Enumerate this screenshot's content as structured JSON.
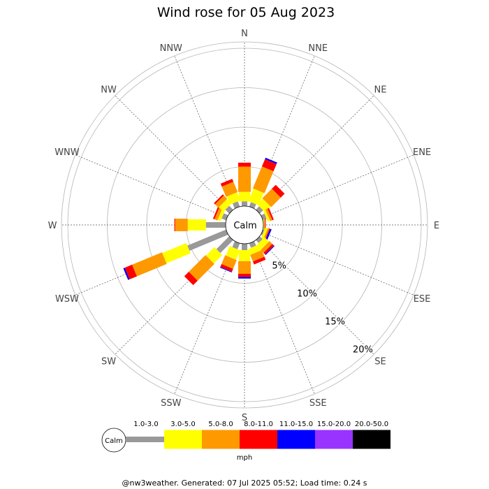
{
  "chart_data": {
    "type": "windrose",
    "title": "Wind rose for 05 Aug 2023",
    "directions": [
      "N",
      "NNE",
      "NE",
      "ENE",
      "E",
      "ESE",
      "SE",
      "SSE",
      "S",
      "SSW",
      "SW",
      "WSW",
      "W",
      "WNW",
      "NW",
      "NNW"
    ],
    "ring_labels": [
      "5%",
      "10%",
      "15%",
      "20%"
    ],
    "ring_values": [
      5,
      10,
      15,
      20
    ],
    "calm_label": "Calm",
    "unit": "mph",
    "speed_bins": [
      {
        "label": "1.0-3.0",
        "color": "#999999"
      },
      {
        "label": "3.0-5.0",
        "color": "#ffff00"
      },
      {
        "label": "5.0-8.0",
        "color": "#ff9900"
      },
      {
        "label": "8.0-11.0",
        "color": "#ff0000"
      },
      {
        "label": "11.0-15.0",
        "color": "#0000ff"
      },
      {
        "label": "15.0-20.0",
        "color": "#9933ff"
      },
      {
        "label": "20.0-50.0",
        "color": "#000000"
      }
    ],
    "series": [
      {
        "direction": "N",
        "values": [
          0.6,
          1.2,
          3.2,
          0.5,
          0.0,
          0,
          0
        ]
      },
      {
        "direction": "NNE",
        "values": [
          0.6,
          1.7,
          3.0,
          1.0,
          0.2,
          0,
          0
        ]
      },
      {
        "direction": "NE",
        "values": [
          0.6,
          1.0,
          1.7,
          0.7,
          0.0,
          0,
          0
        ]
      },
      {
        "direction": "ENE",
        "values": [
          0.5,
          0.3,
          0.3,
          0.2,
          0.0,
          0,
          0
        ]
      },
      {
        "direction": "E",
        "values": [
          0.0,
          0.1,
          0.1,
          0.1,
          0.0,
          0,
          0
        ]
      },
      {
        "direction": "ESE",
        "values": [
          0.2,
          0.3,
          0.2,
          0.1,
          0.2,
          0,
          0
        ]
      },
      {
        "direction": "SE",
        "values": [
          0.5,
          0.8,
          0.5,
          0.3,
          0.1,
          0,
          0
        ]
      },
      {
        "direction": "SSE",
        "values": [
          0.6,
          0.8,
          0.9,
          0.4,
          0.0,
          0,
          0
        ]
      },
      {
        "direction": "S",
        "values": [
          0.8,
          1.4,
          1.6,
          0.4,
          0.2,
          0,
          0
        ]
      },
      {
        "direction": "SSW",
        "values": [
          0.8,
          1.3,
          1.2,
          0.4,
          0.1,
          0,
          0
        ]
      },
      {
        "direction": "SW",
        "values": [
          2.3,
          1.5,
          3.0,
          0.8,
          0.0,
          0,
          0
        ]
      },
      {
        "direction": "WSW",
        "values": [
          5.3,
          3.3,
          4.1,
          1.0,
          0.2,
          0,
          0
        ]
      },
      {
        "direction": "W",
        "values": [
          2.5,
          2.3,
          1.6,
          0.1,
          0.0,
          0,
          0
        ]
      },
      {
        "direction": "WNW",
        "values": [
          0.6,
          0.4,
          0.4,
          0.2,
          0.0,
          0,
          0
        ]
      },
      {
        "direction": "NW",
        "values": [
          0.7,
          0.8,
          0.6,
          0.2,
          0.0,
          0,
          0
        ]
      },
      {
        "direction": "NNW",
        "values": [
          0.7,
          1.1,
          1.4,
          0.4,
          0.0,
          0,
          0
        ]
      }
    ]
  },
  "footer": "@nw3weather. Generated: 07 Jul 2025 05:52; Load time: 0.24 s"
}
